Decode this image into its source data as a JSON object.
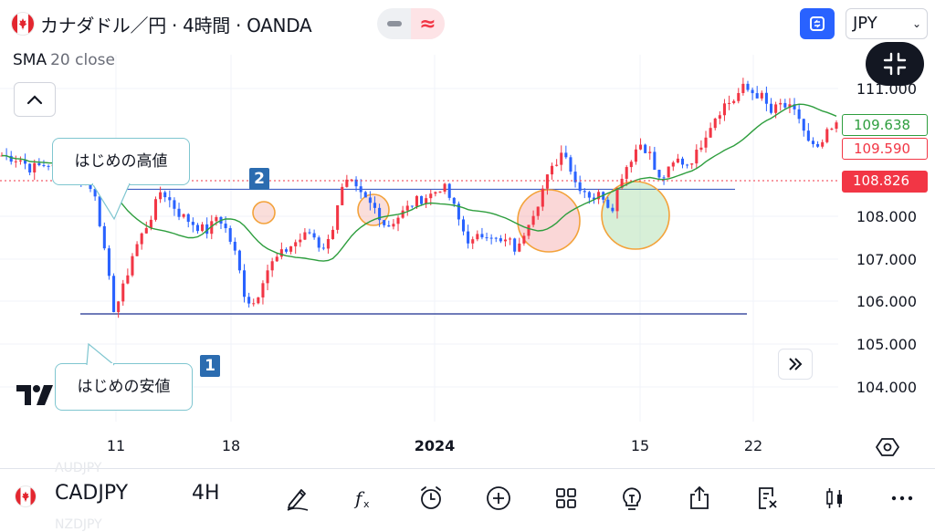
{
  "header": {
    "title": "カナダドル／円 · 4時間 · OANDA",
    "currency": "JPY"
  },
  "indicator": {
    "name": "SMA",
    "params": "20 close"
  },
  "price_tags": {
    "sma": "109.638",
    "last_red": "109.590",
    "crosshair": "108.826"
  },
  "colors": {
    "up": "#f23645",
    "down": "#2962ff",
    "sma": "#2e9e3e",
    "accent": "#2962ff"
  },
  "annotations": {
    "high_label": "はじめの高値",
    "low_label": "はじめの安値",
    "badge_1": "1",
    "badge_2": "2"
  },
  "chart_data": {
    "type": "candlestick",
    "y_ticks": [
      "111.000",
      "108.000",
      "107.000",
      "106.000",
      "105.000",
      "104.000"
    ],
    "x_ticks": [
      "11",
      "18",
      "2024",
      "15",
      "22"
    ],
    "ylim": [
      103.6,
      111.5
    ],
    "levels": [
      107.9,
      104.95
    ],
    "series": [
      {
        "name": "SMA 20 close",
        "values": []
      }
    ],
    "close_path": [
      [
        0,
        108.7
      ],
      [
        2,
        108.6
      ],
      [
        3,
        108.4
      ],
      [
        5,
        108.5
      ],
      [
        6,
        108.3
      ],
      [
        8,
        108.2
      ],
      [
        10,
        107.8
      ],
      [
        11,
        106.3
      ],
      [
        12,
        105.0
      ],
      [
        13,
        105.6
      ],
      [
        14,
        106.4
      ],
      [
        16,
        107.3
      ],
      [
        17,
        107.9
      ],
      [
        18,
        107.6
      ],
      [
        19,
        107.3
      ],
      [
        21,
        107.0
      ],
      [
        22,
        106.9
      ],
      [
        23,
        107.3
      ],
      [
        24,
        106.9
      ],
      [
        25,
        106.3
      ],
      [
        26,
        105.3
      ],
      [
        27,
        105.2
      ],
      [
        28,
        105.9
      ],
      [
        29,
        106.2
      ],
      [
        31,
        106.6
      ],
      [
        33,
        106.9
      ],
      [
        34,
        106.5
      ],
      [
        35,
        106.7
      ],
      [
        36,
        107.8
      ],
      [
        37,
        108.1
      ],
      [
        38,
        107.8
      ],
      [
        40,
        107.4
      ],
      [
        41,
        107.0
      ],
      [
        42,
        107.2
      ],
      [
        43,
        107.4
      ],
      [
        44,
        107.6
      ],
      [
        46,
        107.8
      ],
      [
        47,
        108.0
      ],
      [
        48,
        107.6
      ],
      [
        49,
        107.0
      ],
      [
        50,
        106.6
      ],
      [
        51,
        106.8
      ],
      [
        52,
        106.9
      ],
      [
        53,
        106.6
      ],
      [
        54,
        106.7
      ],
      [
        55,
        106.4
      ],
      [
        56,
        107.1
      ],
      [
        57,
        107.5
      ],
      [
        58,
        108.1
      ],
      [
        59,
        108.5
      ],
      [
        60,
        108.9
      ],
      [
        61,
        108.1
      ],
      [
        62,
        107.9
      ],
      [
        63,
        107.7
      ],
      [
        64,
        107.8
      ],
      [
        65,
        107.4
      ],
      [
        66,
        108.2
      ],
      [
        67,
        108.6
      ],
      [
        68,
        109.0
      ],
      [
        69,
        108.8
      ],
      [
        70,
        108.1
      ],
      [
        71,
        108.3
      ],
      [
        72,
        108.6
      ],
      [
        73,
        108.5
      ],
      [
        74,
        108.7
      ],
      [
        75,
        109.2
      ],
      [
        76,
        109.6
      ],
      [
        77,
        109.9
      ],
      [
        78,
        110.0
      ],
      [
        79,
        110.3
      ],
      [
        80,
        110.2
      ],
      [
        81,
        110.1
      ],
      [
        82,
        109.7
      ],
      [
        83,
        109.9
      ],
      [
        84,
        109.8
      ],
      [
        85,
        109.6
      ],
      [
        86,
        109.0
      ],
      [
        87,
        108.8
      ],
      [
        88,
        109.2
      ],
      [
        89,
        109.4
      ]
    ]
  },
  "bottom": {
    "symbol": "CADJPY",
    "timeframe": "4H",
    "ghost_top": "AUDJPY",
    "ghost_bottom": "NZDJPY"
  },
  "icons": [
    "draw-icon",
    "indicators-icon",
    "alert-icon",
    "add-icon",
    "layouts-icon",
    "ideas-icon",
    "share-icon",
    "watchlist-icon",
    "chart-type-icon",
    "more-icon"
  ]
}
